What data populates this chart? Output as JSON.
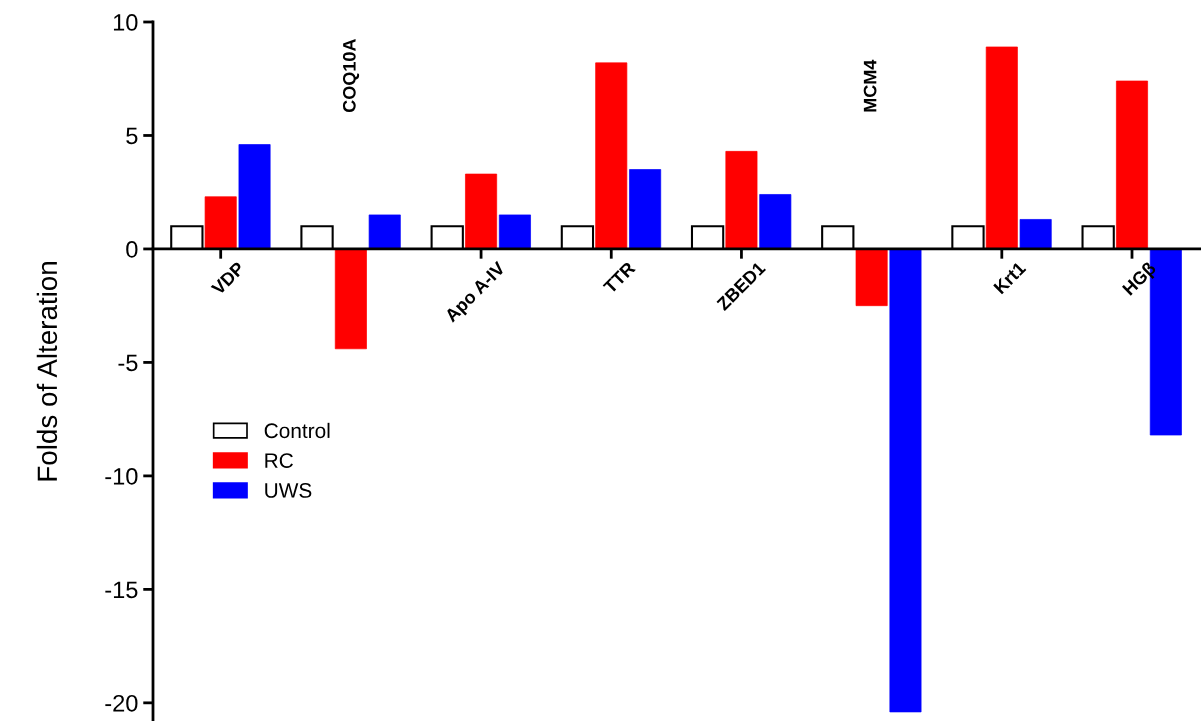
{
  "chart_data": {
    "type": "bar",
    "ylabel": "Folds of Alteration",
    "categories": [
      "VDP",
      "COQ10A",
      "Apo A-IV",
      "TTR",
      "ZBED1",
      "MCM4",
      "Krt1",
      "HGβ"
    ],
    "series": [
      {
        "name": "Control",
        "color": "#ffffff",
        "values": [
          1,
          1,
          1,
          1,
          1,
          1,
          1,
          1
        ]
      },
      {
        "name": "RC",
        "color": "#ff0000",
        "values": [
          2.3,
          -4.4,
          3.3,
          8.2,
          4.3,
          -2.5,
          8.9,
          7.4
        ]
      },
      {
        "name": "UWS",
        "color": "#0000ff",
        "values": [
          4.6,
          1.5,
          1.5,
          3.5,
          2.4,
          -20.4,
          1.3,
          -8.2
        ]
      }
    ],
    "ylim": [
      -20.8,
      10
    ],
    "yticks": [
      -20,
      -15,
      -10,
      -5,
      0,
      5,
      10
    ],
    "grid": false,
    "legend": "left"
  }
}
